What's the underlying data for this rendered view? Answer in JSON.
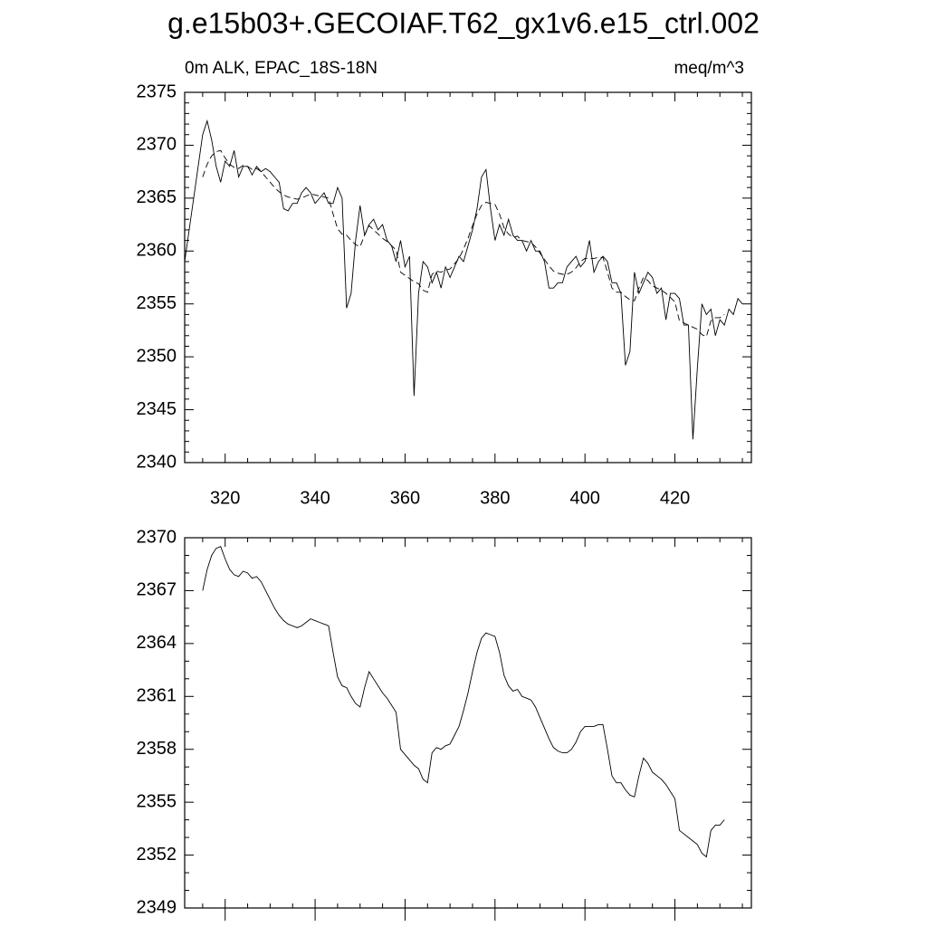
{
  "title": "g.e15b03+.GECOIAF.T62_gx1v6.e15_ctrl.002",
  "chart_data": [
    {
      "type": "line",
      "subtitle_left": "0m ALK, EPAC_18S-18N",
      "subtitle_right": "meq/m^3",
      "x": [
        311,
        312,
        313,
        314,
        315,
        316,
        317,
        318,
        319,
        320,
        321,
        322,
        323,
        324,
        325,
        326,
        327,
        328,
        329,
        330,
        331,
        332,
        333,
        334,
        335,
        336,
        337,
        338,
        339,
        340,
        341,
        342,
        343,
        344,
        345,
        346,
        347,
        348,
        349,
        350,
        351,
        352,
        353,
        354,
        355,
        356,
        357,
        358,
        359,
        360,
        361,
        362,
        363,
        364,
        365,
        366,
        367,
        368,
        369,
        370,
        371,
        372,
        373,
        374,
        375,
        376,
        377,
        378,
        379,
        380,
        381,
        382,
        383,
        384,
        385,
        386,
        387,
        388,
        389,
        390,
        391,
        392,
        393,
        394,
        395,
        396,
        397,
        398,
        399,
        400,
        401,
        402,
        403,
        404,
        405,
        406,
        407,
        408,
        409,
        410,
        411,
        412,
        413,
        414,
        415,
        416,
        417,
        418,
        419,
        420,
        421,
        422,
        423,
        424,
        425,
        426,
        427,
        428,
        429,
        430,
        431,
        432,
        433,
        434,
        435
      ],
      "series": [
        {
          "color": "#000000",
          "dash": false,
          "values": [
            2359,
            2362,
            2365,
            2368,
            2371,
            2372.3,
            2370.5,
            2368,
            2366.5,
            2368.5,
            2368,
            2369.5,
            2367,
            2368,
            2368,
            2367.2,
            2368,
            2367.5,
            2367.8,
            2367.5,
            2367,
            2366.5,
            2364,
            2363.8,
            2364.5,
            2364.5,
            2365.5,
            2366,
            2365.5,
            2364.5,
            2365,
            2365.5,
            2364.5,
            2364.5,
            2366,
            2365,
            2354.6,
            2356,
            2361,
            2364.3,
            2361.5,
            2362.5,
            2363,
            2362,
            2362.5,
            2361,
            2360.5,
            2359,
            2361,
            2358.5,
            2359.5,
            2346.3,
            2356,
            2359,
            2358.5,
            2357,
            2358,
            2356.5,
            2358.5,
            2357.5,
            2358.5,
            2359.5,
            2359,
            2360.5,
            2362,
            2364,
            2367,
            2367.7,
            2364,
            2361,
            2362.5,
            2361.5,
            2363,
            2361.5,
            2361,
            2361,
            2360,
            2361,
            2360,
            2360,
            2359,
            2356.5,
            2356.5,
            2357,
            2357,
            2358.5,
            2359,
            2359.5,
            2358.5,
            2359,
            2361,
            2358,
            2359,
            2359.5,
            2359,
            2357,
            2357,
            2356,
            2349.2,
            2350.5,
            2358,
            2356,
            2357,
            2358,
            2357.5,
            2356,
            2356.5,
            2353.5,
            2356,
            2356,
            2355.5,
            2353,
            2353,
            2342.2,
            2349,
            2355,
            2354,
            2354.5,
            2352,
            2353.5,
            2353,
            2354.5,
            2354,
            2355.5,
            2355
          ]
        },
        {
          "color": "#000000",
          "dash": true,
          "values": [
            null,
            null,
            null,
            null,
            2367,
            2368.2,
            2369,
            2369.4,
            2369.5,
            2368.8,
            2368.2,
            2367.9,
            2367.8,
            2368.1,
            2368,
            2367.7,
            2367.8,
            2367.5,
            2367,
            2366.5,
            2366,
            2365.6,
            2365.3,
            2365.1,
            2365,
            2364.9,
            2365,
            2365.2,
            2365.4,
            2365.3,
            2365.2,
            2365.1,
            2365,
            2363.5,
            2362.1,
            2361.6,
            2361.5,
            2361,
            2360.6,
            2360.4,
            2361.5,
            2362.4,
            2362,
            2361.6,
            2361.2,
            2360.9,
            2360.5,
            2360.1,
            2358,
            2357.7,
            2357.4,
            2357.1,
            2356.9,
            2356.3,
            2356.1,
            2357.8,
            2358.1,
            2358,
            2358.2,
            2358.3,
            2358.8,
            2359.3,
            2360.2,
            2361.2,
            2362.4,
            2363.5,
            2364.3,
            2364.6,
            2364.5,
            2364.4,
            2363.5,
            2362.2,
            2361.6,
            2361.3,
            2361.4,
            2361,
            2360.9,
            2360.8,
            2360.4,
            2359.8,
            2359.2,
            2358.6,
            2358.1,
            2357.9,
            2357.8,
            2357.8,
            2358,
            2358.4,
            2359,
            2359.3,
            2359.3,
            2359.3,
            2359.4,
            2359.4,
            2358,
            2356.5,
            2356.1,
            2356.1,
            2355.7,
            2355.4,
            2355.3,
            2356.5,
            2357.5,
            2357.2,
            2356.7,
            2356.5,
            2356.3,
            2356,
            2355.6,
            2355.2,
            2353.4,
            2353.2,
            2353,
            2352.8,
            2352.6,
            2352.1,
            2351.9,
            2353.4,
            2353.7,
            2353.7,
            2354,
            null,
            null,
            null,
            null
          ]
        }
      ],
      "xlim": [
        311,
        437
      ],
      "xticks": [
        320,
        340,
        360,
        380,
        400,
        420
      ],
      "xtick_labels": true,
      "ylim": [
        2340,
        2375
      ],
      "yticks": [
        2340,
        2345,
        2350,
        2355,
        2360,
        2365,
        2370,
        2375
      ]
    },
    {
      "type": "line",
      "x": [
        311,
        312,
        313,
        314,
        315,
        316,
        317,
        318,
        319,
        320,
        321,
        322,
        323,
        324,
        325,
        326,
        327,
        328,
        329,
        330,
        331,
        332,
        333,
        334,
        335,
        336,
        337,
        338,
        339,
        340,
        341,
        342,
        343,
        344,
        345,
        346,
        347,
        348,
        349,
        350,
        351,
        352,
        353,
        354,
        355,
        356,
        357,
        358,
        359,
        360,
        361,
        362,
        363,
        364,
        365,
        366,
        367,
        368,
        369,
        370,
        371,
        372,
        373,
        374,
        375,
        376,
        377,
        378,
        379,
        380,
        381,
        382,
        383,
        384,
        385,
        386,
        387,
        388,
        389,
        390,
        391,
        392,
        393,
        394,
        395,
        396,
        397,
        398,
        399,
        400,
        401,
        402,
        403,
        404,
        405,
        406,
        407,
        408,
        409,
        410,
        411,
        412,
        413,
        414,
        415,
        416,
        417,
        418,
        419,
        420,
        421,
        422,
        423,
        424,
        425,
        426,
        427,
        428,
        429,
        430,
        431,
        432,
        433,
        434,
        435
      ],
      "series": [
        {
          "color": "#000000",
          "dash": false,
          "values": [
            null,
            null,
            null,
            null,
            2367,
            2368.2,
            2369,
            2369.4,
            2369.5,
            2368.8,
            2368.2,
            2367.9,
            2367.8,
            2368.1,
            2368,
            2367.7,
            2367.8,
            2367.5,
            2367,
            2366.5,
            2366,
            2365.6,
            2365.3,
            2365.1,
            2365,
            2364.9,
            2365,
            2365.2,
            2365.4,
            2365.3,
            2365.2,
            2365.1,
            2365,
            2363.5,
            2362.1,
            2361.6,
            2361.5,
            2361,
            2360.6,
            2360.4,
            2361.5,
            2362.4,
            2362,
            2361.6,
            2361.2,
            2360.9,
            2360.5,
            2360.1,
            2358,
            2357.7,
            2357.4,
            2357.1,
            2356.9,
            2356.3,
            2356.1,
            2357.8,
            2358.1,
            2358,
            2358.2,
            2358.3,
            2358.8,
            2359.3,
            2360.2,
            2361.2,
            2362.4,
            2363.5,
            2364.3,
            2364.6,
            2364.5,
            2364.4,
            2363.5,
            2362.2,
            2361.6,
            2361.3,
            2361.4,
            2361,
            2360.9,
            2360.8,
            2360.4,
            2359.8,
            2359.2,
            2358.6,
            2358.1,
            2357.9,
            2357.8,
            2357.8,
            2358,
            2358.4,
            2359,
            2359.3,
            2359.3,
            2359.3,
            2359.4,
            2359.4,
            2358,
            2356.5,
            2356.1,
            2356.1,
            2355.7,
            2355.4,
            2355.3,
            2356.5,
            2357.5,
            2357.2,
            2356.7,
            2356.5,
            2356.3,
            2356,
            2355.6,
            2355.2,
            2353.4,
            2353.2,
            2353,
            2352.8,
            2352.6,
            2352.1,
            2351.9,
            2353.4,
            2353.7,
            2353.7,
            2354,
            null,
            null,
            null,
            null
          ]
        }
      ],
      "xlim": [
        311,
        437
      ],
      "xticks": [
        320,
        340,
        360,
        380,
        400,
        420
      ],
      "xtick_labels": false,
      "ylim": [
        2349,
        2370
      ],
      "yticks": [
        2349,
        2352,
        2355,
        2358,
        2361,
        2364,
        2367,
        2370
      ]
    }
  ]
}
